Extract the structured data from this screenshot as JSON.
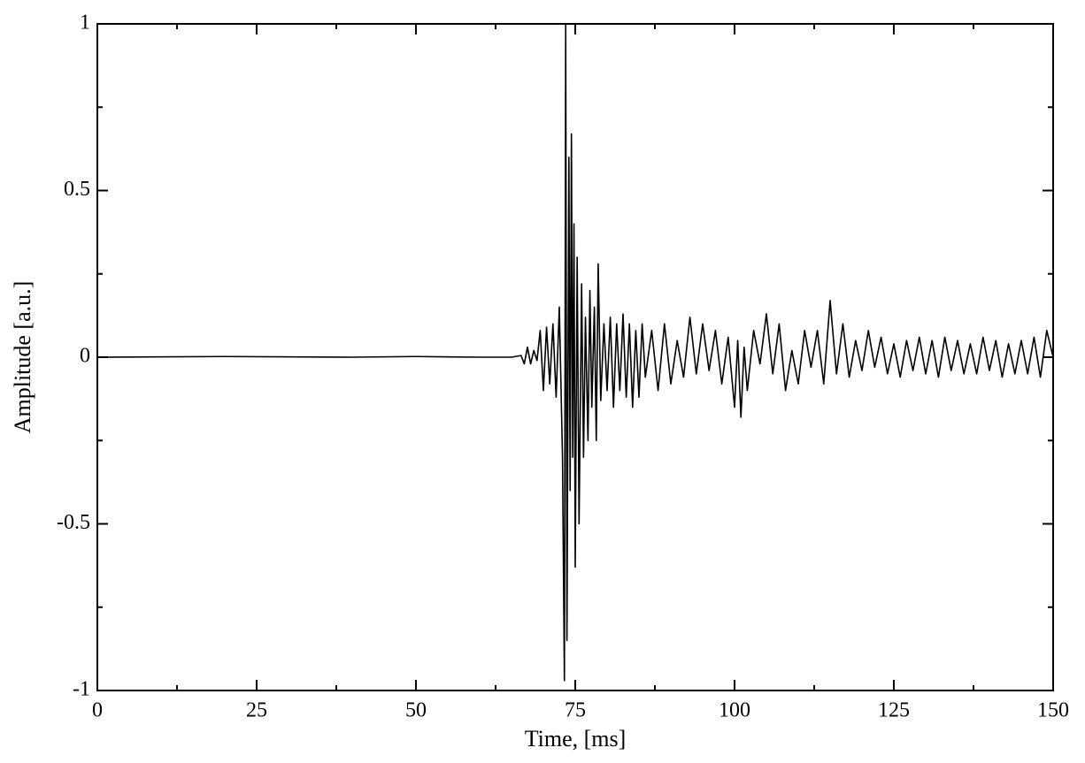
{
  "chart_data": {
    "type": "line",
    "xlabel": "Time, [ms]",
    "ylabel": "Amplitude [a.u.]",
    "color": "#000000",
    "x": [
      0,
      20,
      40,
      50,
      60,
      65,
      66.5,
      67,
      67.5,
      68,
      68.5,
      69,
      69.5,
      70,
      70.5,
      71,
      71.5,
      72,
      72.5,
      73,
      73.3,
      73.5,
      73.7,
      74,
      74.2,
      74.4,
      74.6,
      74.8,
      75,
      75.3,
      75.6,
      76,
      76.3,
      76.6,
      77,
      77.3,
      77.6,
      78,
      78.3,
      78.6,
      79,
      79.5,
      80,
      80.5,
      81,
      81.5,
      82,
      82.5,
      83,
      83.5,
      84,
      84.5,
      85,
      85.5,
      86,
      87,
      88,
      89,
      90,
      91,
      92,
      93,
      94,
      95,
      96,
      97,
      98,
      99,
      100,
      100.5,
      101,
      101.5,
      102,
      103,
      104,
      105,
      106,
      107,
      108,
      109,
      110,
      111,
      112,
      113,
      114,
      115,
      116,
      117,
      118,
      119,
      120,
      121,
      122,
      123,
      124,
      125,
      126,
      127,
      128,
      129,
      130,
      131,
      132,
      133,
      134,
      135,
      136,
      137,
      138,
      139,
      140,
      141,
      142,
      143,
      144,
      145,
      146,
      147,
      148,
      149,
      150
    ],
    "values": [
      0,
      0.002,
      0,
      0.002,
      0,
      0,
      0.005,
      -0.02,
      0.03,
      -0.02,
      0.02,
      -0.01,
      0.08,
      -0.1,
      0.09,
      -0.08,
      0.1,
      -0.12,
      0.15,
      -0.3,
      -0.97,
      1.0,
      -0.85,
      0.6,
      -0.4,
      0.67,
      -0.3,
      0.4,
      -0.63,
      0.3,
      -0.5,
      0.22,
      -0.3,
      0.12,
      -0.25,
      0.2,
      -0.15,
      0.15,
      -0.25,
      0.28,
      -0.13,
      0.1,
      -0.1,
      0.12,
      -0.15,
      0.1,
      -0.1,
      0.13,
      -0.12,
      0.1,
      -0.15,
      0.08,
      -0.12,
      0.1,
      -0.06,
      0.08,
      -0.1,
      0.1,
      -0.08,
      0.05,
      -0.06,
      0.12,
      -0.05,
      0.1,
      -0.04,
      0.08,
      -0.08,
      0.06,
      -0.15,
      0.05,
      -0.18,
      0.03,
      -0.1,
      0.08,
      -0.02,
      0.13,
      -0.05,
      0.1,
      -0.1,
      0.02,
      -0.08,
      0.08,
      -0.03,
      0.08,
      -0.08,
      0.17,
      -0.05,
      0.1,
      -0.06,
      0.05,
      -0.04,
      0.08,
      -0.03,
      0.06,
      -0.05,
      0.04,
      -0.06,
      0.05,
      -0.04,
      0.06,
      -0.05,
      0.05,
      -0.06,
      0.06,
      -0.04,
      0.05,
      -0.05,
      0.04,
      -0.05,
      0.06,
      -0.04,
      0.05,
      -0.06,
      0.04,
      -0.05,
      0.05,
      -0.05,
      0.06,
      -0.06,
      0.08,
      0
    ],
    "xlim": [
      0,
      150
    ],
    "xticks": [
      0,
      25,
      50,
      75,
      100,
      125,
      150
    ],
    "ylim": [
      -1,
      1
    ],
    "yticks": [
      -1,
      -0.5,
      0,
      0.5,
      1
    ]
  }
}
